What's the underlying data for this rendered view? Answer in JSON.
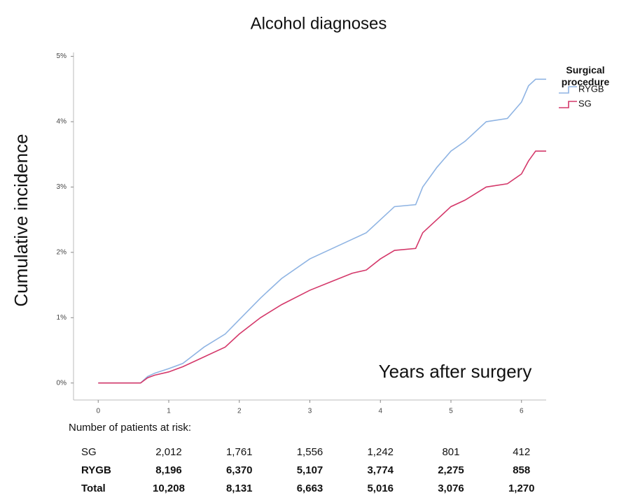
{
  "chart_data": {
    "type": "line",
    "title": "Alcohol diagnoses",
    "x_label": "Years after surgery",
    "y_label": "Cumulative incidence",
    "legend_title": "Surgical procedure",
    "xlim": [
      -0.35,
      6.35
    ],
    "ylim": [
      -0.26,
      5.06
    ],
    "xticks": [
      0,
      1,
      2,
      3,
      4,
      5,
      6
    ],
    "yticks": [
      {
        "value": 0,
        "label": "0%"
      },
      {
        "value": 1,
        "label": "1%"
      },
      {
        "value": 2,
        "label": "2%"
      },
      {
        "value": 3,
        "label": "3%"
      },
      {
        "value": 4,
        "label": "4%"
      },
      {
        "value": 5,
        "label": "5%"
      }
    ],
    "series": [
      {
        "name": "RYGB",
        "color": "#8fb4e3",
        "x": [
          0,
          0.6,
          0.7,
          0.8,
          1,
          1.2,
          1.5,
          1.8,
          2,
          2.3,
          2.6,
          3,
          3.3,
          3.6,
          3.8,
          4,
          4.2,
          4.5,
          4.6,
          4.8,
          5,
          5.2,
          5.5,
          5.8,
          6,
          6.1,
          6.2,
          6.35
        ],
        "values": [
          0,
          0,
          0.1,
          0.15,
          0.22,
          0.3,
          0.55,
          0.75,
          0.97,
          1.3,
          1.6,
          1.9,
          2.05,
          2.2,
          2.3,
          2.5,
          2.7,
          2.73,
          3.0,
          3.3,
          3.55,
          3.7,
          4.0,
          4.05,
          4.3,
          4.55,
          4.65,
          4.65
        ]
      },
      {
        "name": "SG",
        "color": "#d4386a",
        "x": [
          0,
          0.6,
          0.7,
          0.8,
          1,
          1.2,
          1.5,
          1.8,
          2,
          2.3,
          2.6,
          3,
          3.3,
          3.6,
          3.8,
          4,
          4.2,
          4.5,
          4.6,
          4.8,
          5,
          5.2,
          5.5,
          5.8,
          6,
          6.1,
          6.2,
          6.35
        ],
        "values": [
          0,
          0,
          0.08,
          0.12,
          0.17,
          0.25,
          0.4,
          0.55,
          0.75,
          1.0,
          1.2,
          1.42,
          1.55,
          1.68,
          1.73,
          1.9,
          2.03,
          2.06,
          2.3,
          2.5,
          2.7,
          2.8,
          3.0,
          3.05,
          3.2,
          3.4,
          3.55,
          3.55
        ]
      }
    ]
  },
  "risk_table": {
    "title": "Number of patients at risk:",
    "rows": [
      {
        "label": "SG",
        "values": [
          "2,012",
          "1,761",
          "1,556",
          "1,242",
          "801",
          "412"
        ]
      },
      {
        "label": "RYGB",
        "values": [
          "8,196",
          "6,370",
          "5,107",
          "3,774",
          "2,275",
          "858"
        ]
      },
      {
        "label": "Total",
        "values": [
          "10,208",
          "8,131",
          "6,663",
          "5,016",
          "3,076",
          "1,270"
        ]
      }
    ]
  }
}
